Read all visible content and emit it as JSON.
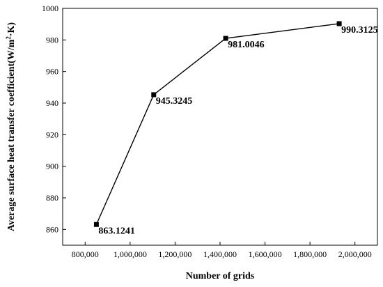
{
  "chart_data": {
    "type": "line",
    "xlabel": "Number of grids",
    "ylabel_main": "Average surface heat transfer coefficient(W/m",
    "ylabel_sup": "2",
    "ylabel_end": "·K)",
    "xlim": [
      700000,
      2100000
    ],
    "ylim": [
      850,
      1000
    ],
    "x_ticks": [
      800000,
      1000000,
      1200000,
      1400000,
      1600000,
      1800000,
      2000000
    ],
    "x_tick_labels": [
      "800,000",
      "1,000,000",
      "1,200,000",
      "1,400,000",
      "1,600,000",
      "1,800,000",
      "2,000,000"
    ],
    "y_ticks": [
      860,
      880,
      900,
      920,
      940,
      960,
      980,
      1000
    ],
    "y_tick_labels": [
      "860",
      "880",
      "900",
      "920",
      "940",
      "960",
      "980",
      "1000"
    ],
    "grid": false,
    "series": [
      {
        "x": [
          850000,
          1105000,
          1425000,
          1930000
        ],
        "values": [
          863.1241,
          945.3245,
          981.0046,
          990.3125
        ],
        "labels": [
          "863.1241",
          "945.3245",
          "981.0046",
          "990.3125"
        ],
        "marker": "square",
        "color": "#000000"
      }
    ]
  }
}
